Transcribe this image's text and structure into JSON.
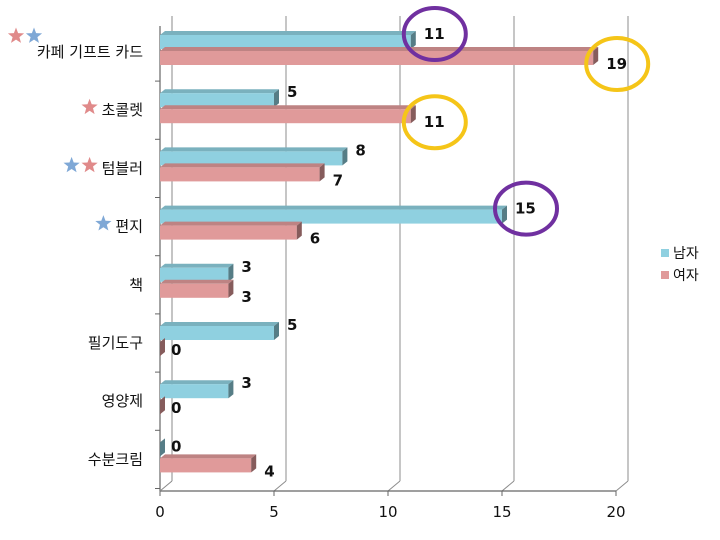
{
  "chart_data": {
    "type": "bar",
    "orientation": "horizontal",
    "style": "3d-clustered",
    "categories": [
      "카페 기프트 카드",
      "초콜렛",
      "텀블러",
      "편지",
      "책",
      "필기도구",
      "영양제",
      "수분크림"
    ],
    "series": [
      {
        "name": "남자",
        "values": [
          11,
          5,
          8,
          15,
          3,
          5,
          3,
          0
        ],
        "color": "#8fd0e0"
      },
      {
        "name": "여자",
        "values": [
          19,
          11,
          7,
          6,
          3,
          0,
          0,
          4
        ],
        "color": "#e09a9a"
      }
    ],
    "xlim": [
      0,
      20
    ],
    "x_ticks": [
      0,
      5,
      10,
      15,
      20
    ],
    "grid": true,
    "legend_position": "right",
    "category_stars": [
      [
        "red",
        "blue"
      ],
      [
        "red"
      ],
      [
        "blue",
        "red"
      ],
      [
        "blue"
      ],
      [],
      [],
      [],
      []
    ],
    "highlights": [
      {
        "category": "카페 기프트 카드",
        "series": "남자",
        "color": "#7030a0"
      },
      {
        "category": "카페 기프트 카드",
        "series": "여자",
        "color": "#f5c518"
      },
      {
        "category": "초콜렛",
        "series": "여자",
        "color": "#f5c518"
      },
      {
        "category": "편지",
        "series": "남자",
        "color": "#7030a0"
      }
    ],
    "star_colors": {
      "red": "#e08a8a",
      "blue": "#7fa8d6"
    }
  }
}
